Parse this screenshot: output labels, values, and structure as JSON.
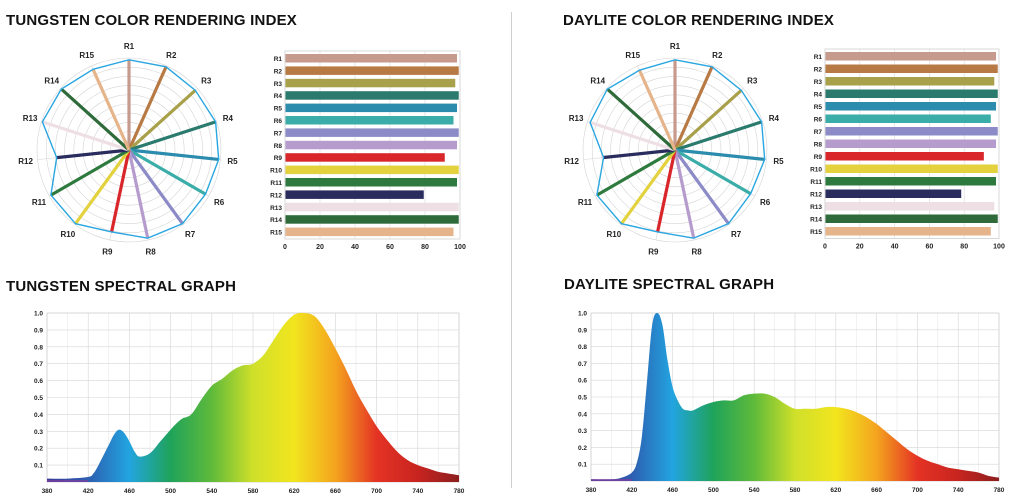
{
  "titles": {
    "tungsten_cri": "TUNGSTEN COLOR RENDERING INDEX",
    "daylite_cri": "DAYLITE COLOR RENDERING INDEX",
    "tungsten_spectral": "TUNGSTEN SPECTRAL GRAPH",
    "daylite_spectral": "DAYLITE SPECTRAL GRAPH"
  },
  "colors": {
    "R1": "#c79a8e",
    "R2": "#b87a45",
    "R3": "#a8a04a",
    "R4": "#2a7a6e",
    "R5": "#2b8cae",
    "R6": "#3aada8",
    "R7": "#8c8bc8",
    "R8": "#b59ccd",
    "R9": "#d9262a",
    "R10": "#e3d23e",
    "R11": "#2e7a3e",
    "R12": "#2a2c5e",
    "R13": "#eedfe4",
    "R14": "#2f6b3a",
    "R15": "#e6b48a",
    "radar_outline": "#2aa6e0",
    "spectrum_stops": [
      "#3a3a9a",
      "#2d5fb0",
      "#22a4e0",
      "#1fa35a",
      "#5fba3a",
      "#cfe02a",
      "#f2e51e",
      "#f4a41e",
      "#e43324",
      "#c8241f",
      "#8c1f1f"
    ]
  },
  "chart_data": [
    {
      "type": "radar",
      "name": "tungsten_radar",
      "categories": [
        "R1",
        "R2",
        "R3",
        "R4",
        "R5",
        "R6",
        "R7",
        "R8",
        "R9",
        "R10",
        "R11",
        "R12",
        "R13",
        "R14",
        "R15"
      ],
      "values": [
        98,
        99,
        97,
        99,
        98,
        96,
        99,
        98,
        91,
        99,
        98,
        79,
        99,
        99,
        96
      ],
      "ylim": [
        0,
        100
      ]
    },
    {
      "type": "bar",
      "name": "tungsten_bars",
      "orientation": "horizontal",
      "categories": [
        "R1",
        "R2",
        "R3",
        "R4",
        "R5",
        "R6",
        "R7",
        "R8",
        "R9",
        "R10",
        "R11",
        "R12",
        "R13",
        "R14",
        "R15"
      ],
      "values": [
        98,
        99,
        97,
        99,
        98,
        96,
        99,
        98,
        91,
        99,
        98,
        79,
        99,
        99,
        96
      ],
      "xticks": [
        "0",
        "20",
        "40",
        "60",
        "80",
        "100"
      ],
      "xlim": [
        0,
        100
      ]
    },
    {
      "type": "radar",
      "name": "daylite_radar",
      "categories": [
        "R1",
        "R2",
        "R3",
        "R4",
        "R5",
        "R6",
        "R7",
        "R8",
        "R9",
        "R10",
        "R11",
        "R12",
        "R13",
        "R14",
        "R15"
      ],
      "values": [
        98,
        99,
        97,
        99,
        98,
        95,
        99,
        98,
        91,
        99,
        98,
        78,
        97,
        99,
        95
      ],
      "ylim": [
        0,
        100
      ]
    },
    {
      "type": "bar",
      "name": "daylite_bars",
      "orientation": "horizontal",
      "categories": [
        "R1",
        "R2",
        "R3",
        "R4",
        "R5",
        "R6",
        "R7",
        "R8",
        "R9",
        "R10",
        "R11",
        "R12",
        "R13",
        "R14",
        "R15"
      ],
      "values": [
        98,
        99,
        97,
        99,
        98,
        95,
        99,
        98,
        91,
        99,
        98,
        78,
        97,
        99,
        95
      ],
      "xticks": [
        "0",
        "20",
        "40",
        "60",
        "80",
        "100"
      ],
      "xlim": [
        0,
        100
      ]
    },
    {
      "type": "area",
      "name": "tungsten_spectrum",
      "xticks": [
        "380",
        "420",
        "460",
        "500",
        "540",
        "580",
        "620",
        "660",
        "700",
        "740",
        "780"
      ],
      "yticks": [
        "0.1",
        "0.2",
        "0.3",
        "0.4",
        "0.5",
        "0.6",
        "0.7",
        "0.8",
        "0.9",
        "1.0"
      ],
      "xlim": [
        380,
        780
      ],
      "ylim": [
        0,
        1.0
      ],
      "x": [
        380,
        400,
        420,
        425,
        430,
        440,
        445,
        450,
        455,
        460,
        465,
        470,
        480,
        490,
        500,
        510,
        520,
        530,
        540,
        550,
        560,
        570,
        580,
        590,
        600,
        610,
        620,
        630,
        640,
        650,
        660,
        670,
        680,
        690,
        700,
        710,
        720,
        730,
        740,
        750,
        760,
        770,
        780
      ],
      "y": [
        0.02,
        0.02,
        0.03,
        0.05,
        0.1,
        0.22,
        0.28,
        0.31,
        0.29,
        0.24,
        0.18,
        0.15,
        0.17,
        0.24,
        0.31,
        0.37,
        0.4,
        0.49,
        0.57,
        0.61,
        0.66,
        0.69,
        0.7,
        0.75,
        0.84,
        0.93,
        0.99,
        1.0,
        0.98,
        0.9,
        0.79,
        0.67,
        0.54,
        0.43,
        0.33,
        0.25,
        0.18,
        0.13,
        0.1,
        0.08,
        0.06,
        0.05,
        0.04
      ]
    },
    {
      "type": "area",
      "name": "daylite_spectrum",
      "xticks": [
        "380",
        "420",
        "460",
        "500",
        "540",
        "580",
        "620",
        "660",
        "700",
        "740",
        "780"
      ],
      "yticks": [
        "0.1",
        "0.2",
        "0.3",
        "0.4",
        "0.5",
        "0.6",
        "0.7",
        "0.8",
        "0.9",
        "1.0"
      ],
      "xlim": [
        380,
        780
      ],
      "ylim": [
        0,
        1.0
      ],
      "x": [
        380,
        400,
        410,
        420,
        425,
        430,
        435,
        440,
        445,
        450,
        455,
        460,
        465,
        470,
        475,
        480,
        490,
        500,
        510,
        520,
        530,
        540,
        550,
        560,
        570,
        580,
        590,
        600,
        610,
        620,
        630,
        640,
        650,
        660,
        670,
        680,
        690,
        700,
        710,
        720,
        730,
        740,
        750,
        760,
        770,
        780
      ],
      "y": [
        0.01,
        0.01,
        0.02,
        0.05,
        0.11,
        0.27,
        0.6,
        0.93,
        1.0,
        0.93,
        0.72,
        0.56,
        0.48,
        0.43,
        0.42,
        0.42,
        0.45,
        0.47,
        0.48,
        0.48,
        0.51,
        0.52,
        0.52,
        0.5,
        0.46,
        0.43,
        0.43,
        0.43,
        0.44,
        0.44,
        0.43,
        0.41,
        0.38,
        0.34,
        0.29,
        0.24,
        0.19,
        0.15,
        0.12,
        0.1,
        0.08,
        0.07,
        0.06,
        0.05,
        0.03,
        0.02
      ]
    }
  ]
}
